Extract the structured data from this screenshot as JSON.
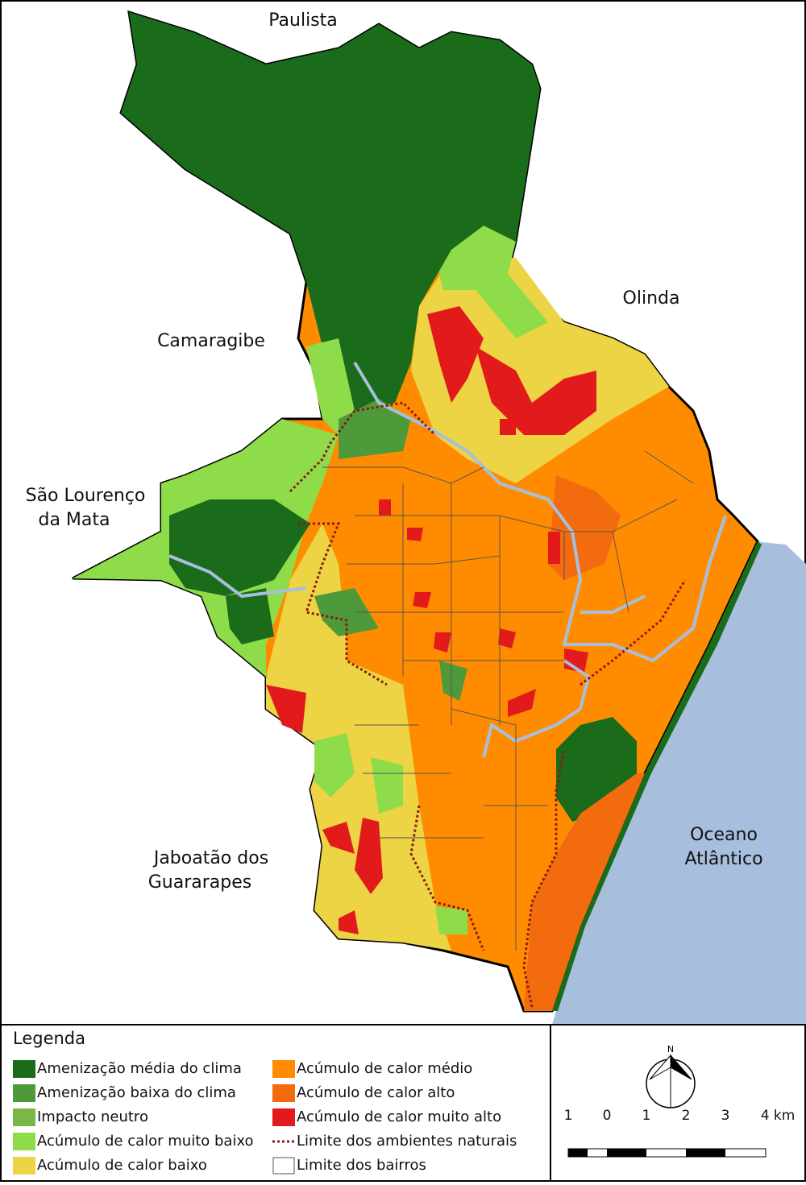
{
  "map": {
    "places": [
      {
        "lines": [
          "Paulista"
        ]
      },
      {
        "lines": [
          "Olinda"
        ]
      },
      {
        "lines": [
          "Camaragibe"
        ]
      },
      {
        "lines": [
          "São Lourenço",
          "da Mata"
        ]
      },
      {
        "lines": [
          "Jaboatão dos",
          "Guararapes"
        ]
      },
      {
        "lines": [
          "Oceano",
          "Atlântico"
        ]
      }
    ]
  },
  "legend": {
    "title": "Legenda",
    "items": [
      "Amenização média do clima",
      "Amenização baixa do clima",
      "Impacto neutro",
      "Acúmulo de calor muito baixo",
      "Acúmulo de calor baixo",
      "Acúmulo de calor médio",
      "Acúmulo de calor alto",
      "Acúmulo de calor muito alto",
      "Limite dos ambientes naturais",
      "Limite dos bairros"
    ]
  },
  "north": "N",
  "scale": {
    "labels": [
      "1",
      "0",
      "1",
      "2",
      "3",
      "4 km"
    ]
  }
}
